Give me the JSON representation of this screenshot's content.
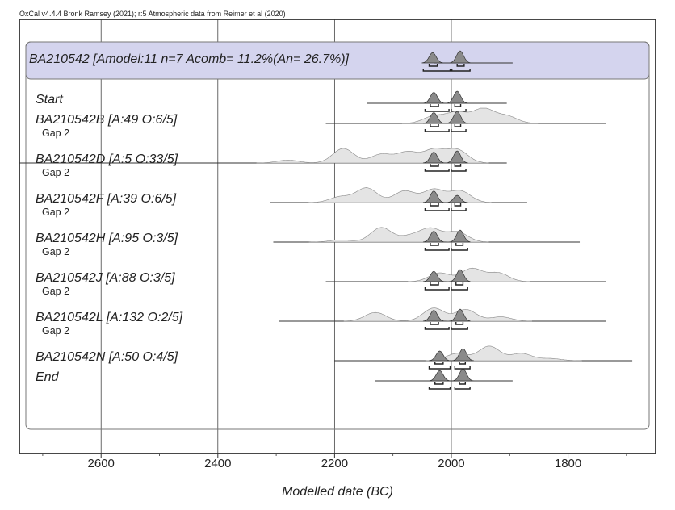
{
  "header": "OxCal v4.4.4 Bronk Ramsey (2021); r:5 Atmospheric data from Reimer et al (2020)",
  "chart_data": {
    "type": "area",
    "title": "BA210542 [Amodel:11 n=7 Acomb= 11.2%(An= 26.7%)]",
    "xlabel": "Modelled date (BC)",
    "ylabel": "",
    "xlim": [
      2740,
      1650
    ],
    "xticks": [
      2600,
      2400,
      2200,
      2000,
      1800
    ],
    "xtick_labels": [
      "2600",
      "2400",
      "2200",
      "2000",
      "1800"
    ],
    "grid": true,
    "colors": {
      "posterior": "#8a8a8a",
      "prior": "#e4e4e4",
      "band": "#d4d4ee",
      "frame": "#555555"
    },
    "rows": [
      {
        "label": "BA210542 [Amodel:11 n=7 Acomb= 11.2%(An= 26.7%)]",
        "kind": "summary",
        "range": [
          2030,
          1895
        ],
        "posterior": [
          [
            2032,
            0.85
          ],
          [
            1985,
            1.0
          ]
        ],
        "sigma1": [
          [
            2038,
            2024
          ],
          [
            1990,
            1978
          ]
        ],
        "sigma2": [
          [
            2048,
            2002
          ],
          [
            1999,
            1968
          ]
        ]
      },
      {
        "label": "Start",
        "kind": "boundary",
        "range": [
          2145,
          1905
        ],
        "posterior": [
          [
            2030,
            0.9
          ],
          [
            1990,
            1.0
          ]
        ],
        "sigma1": [
          [
            2036,
            2022
          ],
          [
            1994,
            1984
          ]
        ],
        "sigma2": [
          [
            2045,
            2004
          ],
          [
            2000,
            1975
          ]
        ]
      },
      {
        "label": "BA210542B [A:49 O:6/5]",
        "kind": "date",
        "range": [
          2215,
          1735
        ],
        "prior": [
          [
            2030,
            0.5
          ],
          [
            1990,
            0.75
          ],
          [
            1945,
            1.0
          ],
          [
            1905,
            0.5
          ]
        ],
        "posterior": [
          [
            2030,
            0.9
          ],
          [
            1990,
            1.0
          ]
        ],
        "sigma1": [
          [
            2036,
            2022
          ],
          [
            1994,
            1984
          ]
        ],
        "sigma2": [
          [
            2045,
            2004
          ],
          [
            2000,
            1975
          ]
        ]
      },
      {
        "label": "Gap 2",
        "kind": "gap"
      },
      {
        "label": "BA210542D [A:5 O:33/5]",
        "kind": "date",
        "range": [
          2740,
          1905
        ],
        "prior": [
          [
            2280,
            0.2
          ],
          [
            2185,
            1.0
          ],
          [
            2120,
            0.6
          ],
          [
            2075,
            0.75
          ],
          [
            2030,
            0.9
          ],
          [
            1990,
            0.9
          ]
        ],
        "posterior": [
          [
            2030,
            0.9
          ],
          [
            1990,
            1.0
          ]
        ],
        "sigma1": [
          [
            2036,
            2022
          ],
          [
            1994,
            1984
          ]
        ],
        "sigma2": [
          [
            2045,
            2004
          ],
          [
            2000,
            1975
          ]
        ]
      },
      {
        "label": "Gap 2",
        "kind": "gap"
      },
      {
        "label": "BA210542F [A:39 O:6/5]",
        "kind": "date",
        "range": [
          2310,
          1870
        ],
        "prior": [
          [
            2190,
            0.4
          ],
          [
            2145,
            1.0
          ],
          [
            2080,
            0.8
          ],
          [
            2030,
            0.9
          ],
          [
            1985,
            0.8
          ]
        ],
        "posterior": [
          [
            2030,
            0.95
          ],
          [
            1990,
            0.6
          ]
        ],
        "sigma1": [
          [
            2036,
            2022
          ],
          [
            1994,
            1984
          ]
        ],
        "sigma2": [
          [
            2045,
            2004
          ],
          [
            2000,
            1975
          ]
        ]
      },
      {
        "label": "Gap 2",
        "kind": "gap"
      },
      {
        "label": "BA210542H [A:95 O:3/5]",
        "kind": "date",
        "range": [
          2305,
          1780
        ],
        "prior": [
          [
            2190,
            0.15
          ],
          [
            2120,
            1.0
          ],
          [
            2070,
            0.4
          ],
          [
            2035,
            0.9
          ],
          [
            1990,
            0.7
          ]
        ],
        "posterior": [
          [
            2030,
            0.9
          ],
          [
            1985,
            1.0
          ]
        ],
        "sigma1": [
          [
            2036,
            2022
          ],
          [
            1992,
            1980
          ]
        ],
        "sigma2": [
          [
            2045,
            2004
          ],
          [
            2000,
            1972
          ]
        ]
      },
      {
        "label": "Gap 2",
        "kind": "gap"
      },
      {
        "label": "BA210542J [A:88 O:3/5]",
        "kind": "date",
        "range": [
          2215,
          1735
        ],
        "prior": [
          [
            2020,
            0.6
          ],
          [
            1965,
            0.9
          ],
          [
            1920,
            0.6
          ]
        ],
        "posterior": [
          [
            2030,
            0.85
          ],
          [
            1985,
            1.0
          ]
        ],
        "sigma1": [
          [
            2036,
            2022
          ],
          [
            1992,
            1980
          ]
        ],
        "sigma2": [
          [
            2045,
            2004
          ],
          [
            2000,
            1972
          ]
        ]
      },
      {
        "label": "Gap 2",
        "kind": "gap"
      },
      {
        "label": "BA210542L [A:132 O:2/5]",
        "kind": "date",
        "range": [
          2295,
          1735
        ],
        "prior": [
          [
            2130,
            0.6
          ],
          [
            2030,
            0.9
          ],
          [
            1975,
            0.8
          ],
          [
            1915,
            0.3
          ]
        ],
        "posterior": [
          [
            2030,
            0.9
          ],
          [
            1985,
            1.0
          ]
        ],
        "sigma1": [
          [
            2036,
            2022
          ],
          [
            1992,
            1980
          ]
        ],
        "sigma2": [
          [
            2045,
            2004
          ],
          [
            2000,
            1972
          ]
        ]
      },
      {
        "label": "Gap 2",
        "kind": "gap"
      },
      {
        "label": "BA210542N [A:50 O:4/5]",
        "kind": "date",
        "range": [
          2200,
          1690
        ],
        "prior": [
          [
            1990,
            0.5
          ],
          [
            1935,
            1.0
          ],
          [
            1880,
            0.5
          ],
          [
            1830,
            0.15
          ]
        ],
        "posterior": [
          [
            2020,
            0.8
          ],
          [
            1980,
            1.0
          ]
        ],
        "sigma1": [
          [
            2028,
            2014
          ],
          [
            1986,
            1976
          ]
        ],
        "sigma2": [
          [
            2038,
            2002
          ],
          [
            1994,
            1968
          ]
        ]
      },
      {
        "label": "End",
        "kind": "boundary",
        "range": [
          2130,
          1895
        ],
        "posterior": [
          [
            2020,
            0.85
          ],
          [
            1980,
            1.0
          ]
        ],
        "sigma1": [
          [
            2028,
            2014
          ],
          [
            1986,
            1976
          ]
        ],
        "sigma2": [
          [
            2038,
            2002
          ],
          [
            1994,
            1968
          ]
        ]
      }
    ]
  }
}
